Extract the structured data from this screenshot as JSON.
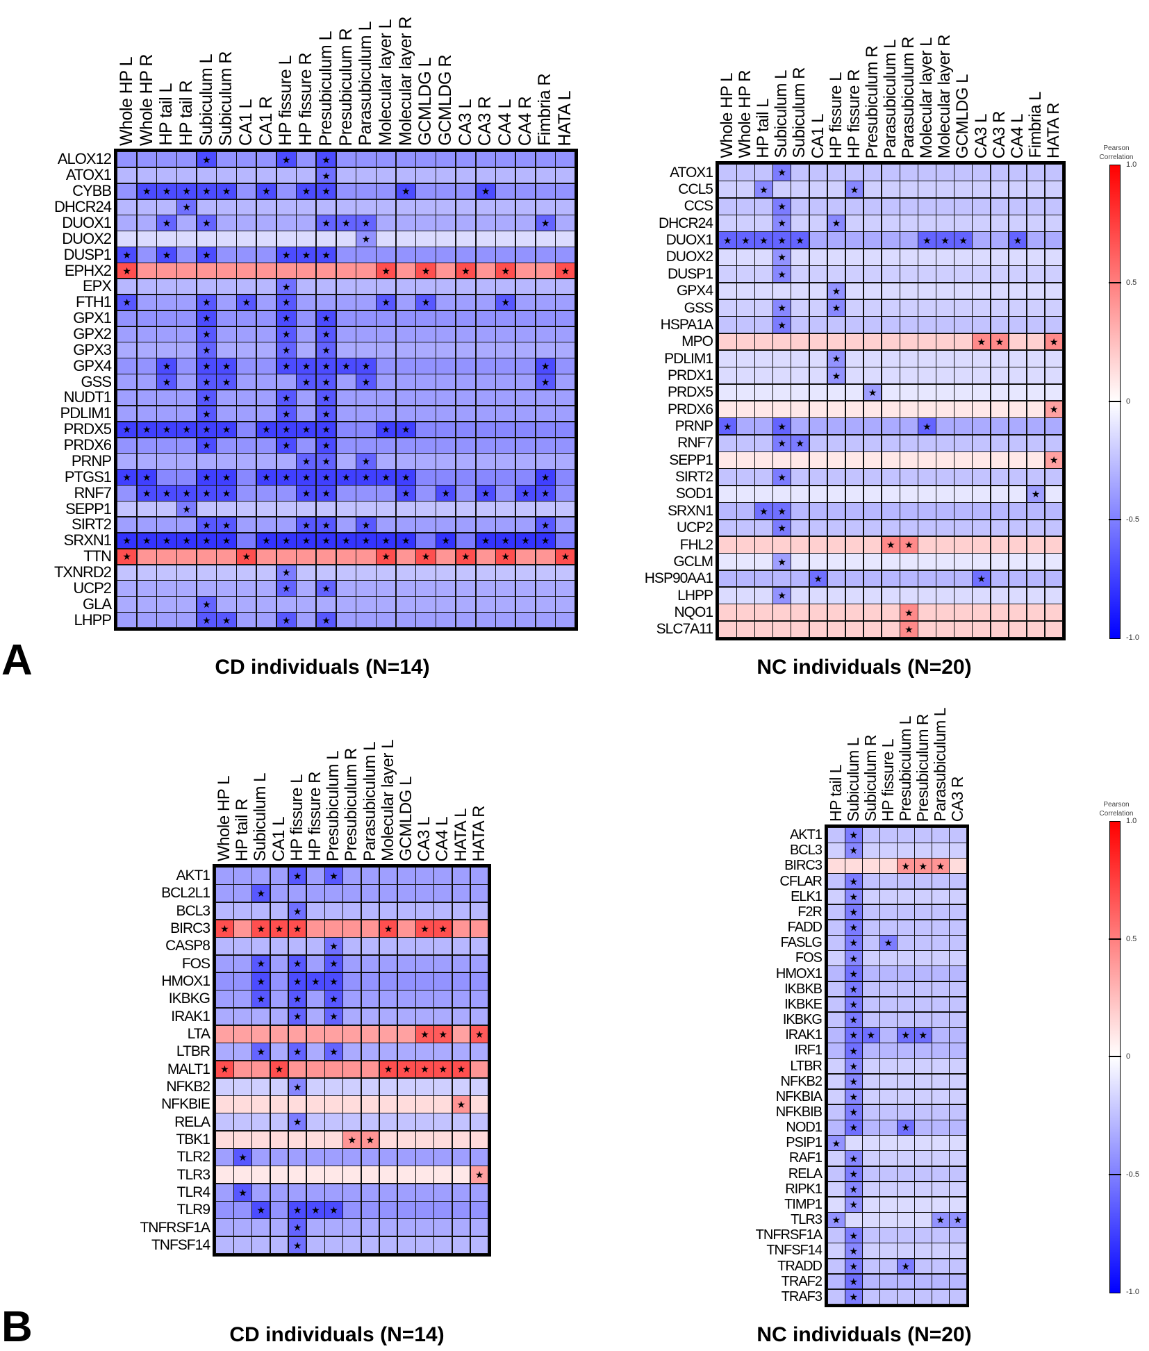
{
  "panel_labels": [
    "A",
    "B"
  ],
  "colorbar": {
    "title": "Pearson Correlation",
    "range": [
      -1,
      1
    ],
    "ticks": [
      "1.0",
      "0.5",
      "0",
      "-0.5",
      "-1.0"
    ],
    "colors": {
      "negative": "#0000ff",
      "zero": "#ffffff",
      "positive": "#ff0000"
    }
  },
  "chart_data": [
    {
      "type": "heatmap",
      "panel": "A",
      "title": "CD individuals (N=14)",
      "value_label": "Pearson Correlation",
      "significance_marker": "star",
      "columns": [
        "Whole HP L",
        "Whole HP R",
        "HP tail L",
        "HP tail R",
        "Subiculum L",
        "Subiculum R",
        "CA1 L",
        "CA1 R",
        "HP fissure L",
        "HP fissure R",
        "Presubiculum L",
        "Presubiculum R",
        "Parasubiculum L",
        "Molecular layer L",
        "Molecular layer R",
        "GCMLDG L",
        "GCMLDG R",
        "CA3 L",
        "CA3 R",
        "CA4 L",
        "CA4 R",
        "Fimbria R",
        "HATA L"
      ],
      "rows": [
        {
          "label": "ALOX12",
          "r": -0.45,
          "sig": [
            4,
            8,
            10
          ]
        },
        {
          "label": "ATOX1",
          "r": -0.3,
          "sig": [
            10
          ]
        },
        {
          "label": "CYBB",
          "r": -0.45,
          "sig": [
            1,
            2,
            3,
            4,
            5,
            7,
            9,
            10,
            14,
            18
          ]
        },
        {
          "label": "DHCR24",
          "r": -0.3,
          "sig": [
            3
          ]
        },
        {
          "label": "DUOX1",
          "r": -0.35,
          "sig": [
            2,
            4,
            10,
            11,
            12,
            21
          ]
        },
        {
          "label": "DUOX2",
          "r": -0.15,
          "sig": [
            12
          ]
        },
        {
          "label": "DUSP1",
          "r": -0.45,
          "sig": [
            0,
            2,
            4,
            8,
            9,
            10
          ]
        },
        {
          "label": "EPHX2",
          "r": 0.45,
          "sig": [
            0,
            13,
            15,
            17,
            19,
            22
          ]
        },
        {
          "label": "EPX",
          "r": -0.3,
          "sig": [
            8
          ]
        },
        {
          "label": "FTH1",
          "r": -0.4,
          "sig": [
            0,
            4,
            6,
            8,
            13,
            15,
            19
          ]
        },
        {
          "label": "GPX1",
          "r": -0.45,
          "sig": [
            4,
            8,
            10
          ]
        },
        {
          "label": "GPX2",
          "r": -0.4,
          "sig": [
            4,
            8,
            10
          ]
        },
        {
          "label": "GPX3",
          "r": -0.35,
          "sig": [
            4,
            8,
            10
          ]
        },
        {
          "label": "GPX4",
          "r": -0.45,
          "sig": [
            2,
            4,
            5,
            8,
            9,
            10,
            11,
            12,
            21
          ]
        },
        {
          "label": "GSS",
          "r": -0.4,
          "sig": [
            2,
            4,
            5,
            9,
            10,
            12,
            21
          ]
        },
        {
          "label": "NUDT1",
          "r": -0.4,
          "sig": [
            4,
            8,
            10
          ]
        },
        {
          "label": "PDLIM1",
          "r": -0.4,
          "sig": [
            4,
            8,
            10
          ]
        },
        {
          "label": "PRDX5",
          "r": -0.5,
          "sig": [
            0,
            1,
            2,
            3,
            4,
            5,
            7,
            8,
            9,
            10,
            13,
            14
          ]
        },
        {
          "label": "PRDX6",
          "r": -0.45,
          "sig": [
            4,
            8,
            10
          ]
        },
        {
          "label": "PRNP",
          "r": -0.35,
          "sig": [
            9,
            10,
            12
          ]
        },
        {
          "label": "PTGS1",
          "r": -0.5,
          "sig": [
            0,
            1,
            4,
            5,
            7,
            8,
            9,
            10,
            11,
            12,
            13,
            14,
            21
          ]
        },
        {
          "label": "RNF7",
          "r": -0.45,
          "sig": [
            1,
            2,
            3,
            4,
            5,
            9,
            10,
            14,
            16,
            18,
            20,
            21
          ]
        },
        {
          "label": "SEPP1",
          "r": -0.25,
          "sig": [
            3
          ]
        },
        {
          "label": "SIRT2",
          "r": -0.4,
          "sig": [
            4,
            5,
            9,
            10,
            12,
            21
          ]
        },
        {
          "label": "SRXN1",
          "r": -0.55,
          "sig": [
            0,
            1,
            2,
            3,
            4,
            5,
            7,
            8,
            9,
            10,
            11,
            12,
            13,
            14,
            16,
            18,
            19,
            20,
            21
          ]
        },
        {
          "label": "TTN",
          "r": 0.45,
          "sig": [
            0,
            6,
            13,
            15,
            17,
            19,
            22
          ]
        },
        {
          "label": "TXNRD2",
          "r": -0.25,
          "sig": [
            8
          ]
        },
        {
          "label": "UCP2",
          "r": -0.35,
          "sig": [
            8,
            10
          ]
        },
        {
          "label": "GLA",
          "r": -0.35,
          "sig": [
            4
          ]
        },
        {
          "label": "LHPP",
          "r": -0.4,
          "sig": [
            4,
            5,
            8,
            10
          ]
        }
      ]
    },
    {
      "type": "heatmap",
      "panel": "A",
      "title": "NC individuals (N=20)",
      "value_label": "Pearson Correlation",
      "significance_marker": "star",
      "columns": [
        "Whole HP L",
        "Whole HP R",
        "HP tail L",
        "Subiculum L",
        "Subiculum R",
        "CA1 L",
        "HP fissure L",
        "HP fissure R",
        "Presubiculum R",
        "Parasubiculum L",
        "Parasubiculum R",
        "Molecular layer L",
        "Molecular layer R",
        "GCMLDG L",
        "CA3 L",
        "CA3 R",
        "CA4 L",
        "Fimbria L",
        "HATA R"
      ],
      "rows": [
        {
          "label": "ATOX1",
          "r": -0.25,
          "sig": [
            3
          ]
        },
        {
          "label": "CCL5",
          "r": -0.2,
          "sig": [
            2,
            7
          ]
        },
        {
          "label": "CCS",
          "r": -0.25,
          "sig": [
            3
          ]
        },
        {
          "label": "DHCR24",
          "r": -0.2,
          "sig": [
            3,
            6
          ]
        },
        {
          "label": "DUOX1",
          "r": -0.35,
          "sig": [
            0,
            1,
            2,
            3,
            4,
            11,
            12,
            13,
            16
          ]
        },
        {
          "label": "DUOX2",
          "r": -0.15,
          "sig": [
            3
          ]
        },
        {
          "label": "DUSP1",
          "r": -0.2,
          "sig": [
            3
          ]
        },
        {
          "label": "GPX4",
          "r": -0.15,
          "sig": [
            6
          ]
        },
        {
          "label": "GSS",
          "r": -0.2,
          "sig": [
            3,
            6
          ]
        },
        {
          "label": "HSPA1A",
          "r": -0.25,
          "sig": [
            3
          ]
        },
        {
          "label": "MPO",
          "r": 0.2,
          "sig": [
            14,
            15,
            18
          ]
        },
        {
          "label": "PDLIM1",
          "r": -0.15,
          "sig": [
            6
          ]
        },
        {
          "label": "PRDX1",
          "r": -0.15,
          "sig": [
            6
          ]
        },
        {
          "label": "PRDX5",
          "r": -0.1,
          "sig": [
            8
          ]
        },
        {
          "label": "PRDX6",
          "r": 0.1,
          "sig": [
            18
          ]
        },
        {
          "label": "PRNP",
          "r": -0.35,
          "sig": [
            0,
            3,
            11
          ]
        },
        {
          "label": "RNF7",
          "r": -0.25,
          "sig": [
            3,
            4
          ]
        },
        {
          "label": "SEPP1",
          "r": 0.1,
          "sig": [
            18
          ]
        },
        {
          "label": "SIRT2",
          "r": -0.25,
          "sig": [
            3
          ]
        },
        {
          "label": "SOD1",
          "r": -0.1,
          "sig": [
            17
          ]
        },
        {
          "label": "SRXN1",
          "r": -0.3,
          "sig": [
            2,
            3
          ]
        },
        {
          "label": "UCP2",
          "r": -0.25,
          "sig": [
            3
          ]
        },
        {
          "label": "FHL2",
          "r": 0.2,
          "sig": [
            9,
            10
          ]
        },
        {
          "label": "GCLM",
          "r": -0.1,
          "sig": [
            3
          ]
        },
        {
          "label": "HSP90AA1",
          "r": -0.3,
          "sig": [
            5,
            14
          ]
        },
        {
          "label": "LHPP",
          "r": -0.15,
          "sig": [
            3
          ]
        },
        {
          "label": "NQO1",
          "r": 0.2,
          "sig": [
            10
          ]
        },
        {
          "label": "SLC7A11",
          "r": 0.2,
          "sig": [
            10
          ]
        }
      ]
    },
    {
      "type": "heatmap",
      "panel": "B",
      "title": "CD individuals (N=14)",
      "value_label": "Pearson Correlation",
      "significance_marker": "star",
      "columns": [
        "Whole HP L",
        "HP tail R",
        "Subiculum L",
        "CA1 L",
        "HP fissure L",
        "HP fissure R",
        "Presubiculum L",
        "Presubiculum R",
        "Parasubiculum L",
        "Molecular layer L",
        "GCMLDG L",
        "CA3 L",
        "CA4 L",
        "HATA L",
        "HATA R"
      ],
      "rows": [
        {
          "label": "AKT1",
          "r": -0.4,
          "sig": [
            4,
            6
          ]
        },
        {
          "label": "BCL2L1",
          "r": -0.4,
          "sig": [
            2
          ]
        },
        {
          "label": "BCL3",
          "r": -0.3,
          "sig": [
            4
          ]
        },
        {
          "label": "BIRC3",
          "r": 0.45,
          "sig": [
            0,
            2,
            3,
            4,
            9,
            11,
            12
          ]
        },
        {
          "label": "CASP8",
          "r": -0.3,
          "sig": [
            6
          ]
        },
        {
          "label": "FOS",
          "r": -0.4,
          "sig": [
            2,
            4,
            6
          ]
        },
        {
          "label": "HMOX1",
          "r": -0.45,
          "sig": [
            2,
            4,
            5,
            6
          ]
        },
        {
          "label": "IKBKG",
          "r": -0.4,
          "sig": [
            2,
            4,
            6
          ]
        },
        {
          "label": "IRAK1",
          "r": -0.35,
          "sig": [
            4,
            6
          ]
        },
        {
          "label": "LTA",
          "r": 0.4,
          "sig": [
            11,
            12,
            14
          ]
        },
        {
          "label": "LTBR",
          "r": -0.35,
          "sig": [
            2,
            4,
            6
          ]
        },
        {
          "label": "MALT1",
          "r": 0.45,
          "sig": [
            0,
            3,
            9,
            10,
            11,
            12,
            13
          ]
        },
        {
          "label": "NFKB2",
          "r": -0.2,
          "sig": [
            4
          ]
        },
        {
          "label": "NFKBIE",
          "r": 0.15,
          "sig": [
            13
          ]
        },
        {
          "label": "RELA",
          "r": -0.25,
          "sig": [
            4
          ]
        },
        {
          "label": "TBK1",
          "r": 0.15,
          "sig": [
            7,
            8
          ]
        },
        {
          "label": "TLR2",
          "r": -0.4,
          "sig": [
            1
          ]
        },
        {
          "label": "TLR3",
          "r": 0.1,
          "sig": [
            14
          ]
        },
        {
          "label": "TLR4",
          "r": -0.4,
          "sig": [
            1
          ]
        },
        {
          "label": "TLR9",
          "r": -0.45,
          "sig": [
            2,
            4,
            5,
            6
          ]
        },
        {
          "label": "TNFRSF1A",
          "r": -0.35,
          "sig": [
            4
          ]
        },
        {
          "label": "TNFSF14",
          "r": -0.3,
          "sig": [
            4
          ]
        }
      ]
    },
    {
      "type": "heatmap",
      "panel": "B",
      "title": "NC individuals (N=20)",
      "value_label": "Pearson Correlation",
      "significance_marker": "star",
      "columns": [
        "HP tail L",
        "Subiculum L",
        "Subiculum R",
        "HP fissure L",
        "Presubiculum L",
        "Presubiculum R",
        "Parasubiculum L",
        "CA3 R"
      ],
      "rows": [
        {
          "label": "AKT1",
          "r": -0.25,
          "sig": [
            1
          ]
        },
        {
          "label": "BCL3",
          "r": -0.2,
          "sig": [
            1
          ]
        },
        {
          "label": "BIRC3",
          "r": 0.15,
          "sig": [
            4,
            5,
            6
          ]
        },
        {
          "label": "CFLAR",
          "r": -0.25,
          "sig": [
            1
          ]
        },
        {
          "label": "ELK1",
          "r": -0.2,
          "sig": [
            1
          ]
        },
        {
          "label": "F2R",
          "r": -0.25,
          "sig": [
            1
          ]
        },
        {
          "label": "FADD",
          "r": -0.25,
          "sig": [
            1
          ]
        },
        {
          "label": "FASLG",
          "r": -0.25,
          "sig": [
            1,
            3
          ]
        },
        {
          "label": "FOS",
          "r": -0.2,
          "sig": [
            1
          ]
        },
        {
          "label": "HMOX1",
          "r": -0.3,
          "sig": [
            1
          ]
        },
        {
          "label": "IKBKB",
          "r": -0.25,
          "sig": [
            1
          ]
        },
        {
          "label": "IKBKE",
          "r": -0.25,
          "sig": [
            1
          ]
        },
        {
          "label": "IKBKG",
          "r": -0.25,
          "sig": [
            1
          ]
        },
        {
          "label": "IRAK1",
          "r": -0.3,
          "sig": [
            1,
            2,
            4,
            5
          ]
        },
        {
          "label": "IRF1",
          "r": -0.3,
          "sig": [
            1
          ]
        },
        {
          "label": "LTBR",
          "r": -0.2,
          "sig": [
            1
          ]
        },
        {
          "label": "NFKB2",
          "r": -0.2,
          "sig": [
            1
          ]
        },
        {
          "label": "NFKBIA",
          "r": -0.2,
          "sig": [
            1
          ]
        },
        {
          "label": "NFKBIB",
          "r": -0.25,
          "sig": [
            1
          ]
        },
        {
          "label": "NOD1",
          "r": -0.3,
          "sig": [
            1,
            4
          ]
        },
        {
          "label": "PSIP1",
          "r": -0.15,
          "sig": [
            0
          ]
        },
        {
          "label": "RAF1",
          "r": -0.2,
          "sig": [
            1
          ]
        },
        {
          "label": "RELA",
          "r": -0.25,
          "sig": [
            1
          ]
        },
        {
          "label": "RIPK1",
          "r": -0.2,
          "sig": [
            1
          ]
        },
        {
          "label": "TIMP1",
          "r": -0.15,
          "sig": [
            1
          ]
        },
        {
          "label": "TLR3",
          "r": -0.15,
          "sig": [
            0,
            6,
            7
          ]
        },
        {
          "label": "TNFRSF1A",
          "r": -0.25,
          "sig": [
            1
          ]
        },
        {
          "label": "TNFSF14",
          "r": -0.2,
          "sig": [
            1
          ]
        },
        {
          "label": "TRADD",
          "r": -0.25,
          "sig": [
            1,
            4
          ]
        },
        {
          "label": "TRAF2",
          "r": -0.3,
          "sig": [
            1
          ]
        },
        {
          "label": "TRAF3",
          "r": -0.25,
          "sig": [
            1
          ]
        }
      ]
    }
  ]
}
